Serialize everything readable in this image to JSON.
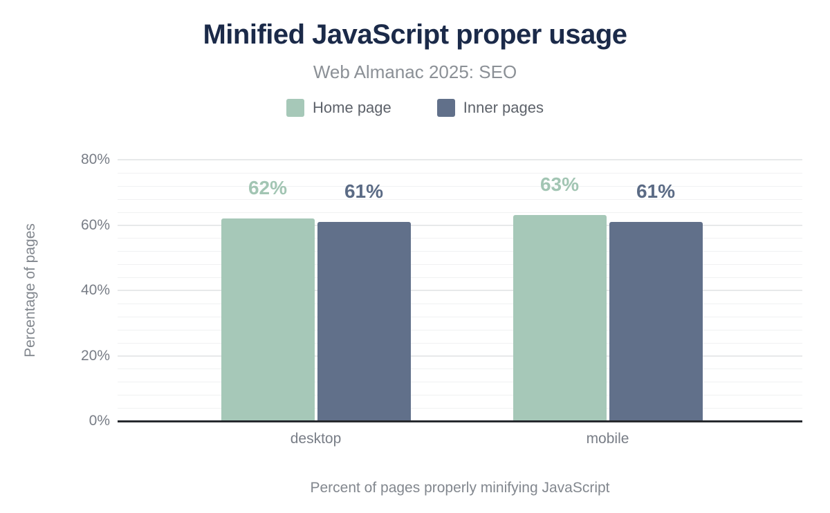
{
  "figure": {
    "title": "Minified JavaScript proper usage",
    "subtitle": "Web Almanac 2025: SEO"
  },
  "chart_data": {
    "type": "bar",
    "title": "Minified JavaScript proper usage",
    "subtitle": "Web Almanac 2025: SEO",
    "categories": [
      "desktop",
      "mobile"
    ],
    "series": [
      {
        "name": "Home page",
        "color": "#a6c8b8",
        "label_color": "#a2c5b3",
        "values": [
          62,
          63
        ],
        "labels": [
          "62%",
          "63%"
        ]
      },
      {
        "name": "Inner pages",
        "color": "#61708a",
        "label_color": "#5b6b85",
        "values": [
          61,
          61
        ],
        "labels": [
          "61%",
          "61%"
        ]
      }
    ],
    "ylabel": "Percentage of pages",
    "xlabel": "Percent of pages properly minifying JavaScript",
    "ylim": [
      0,
      80
    ],
    "y_ticks": [
      {
        "value": 0,
        "label": "0%"
      },
      {
        "value": 20,
        "label": "20%"
      },
      {
        "value": 40,
        "label": "40%"
      },
      {
        "value": 60,
        "label": "60%"
      },
      {
        "value": 80,
        "label": "80%"
      }
    ],
    "grid": {
      "major_step": 20,
      "minor_step": 4,
      "grid_on": true
    },
    "legend_position": "top"
  },
  "colors": {
    "title": "#1b2a49",
    "subtitle": "#8b9096",
    "axis_text": "#787d86",
    "baseline": "#26292e",
    "major_grid": "#e7e9ea",
    "minor_grid": "#f0f1f2",
    "background": "#ffffff"
  }
}
